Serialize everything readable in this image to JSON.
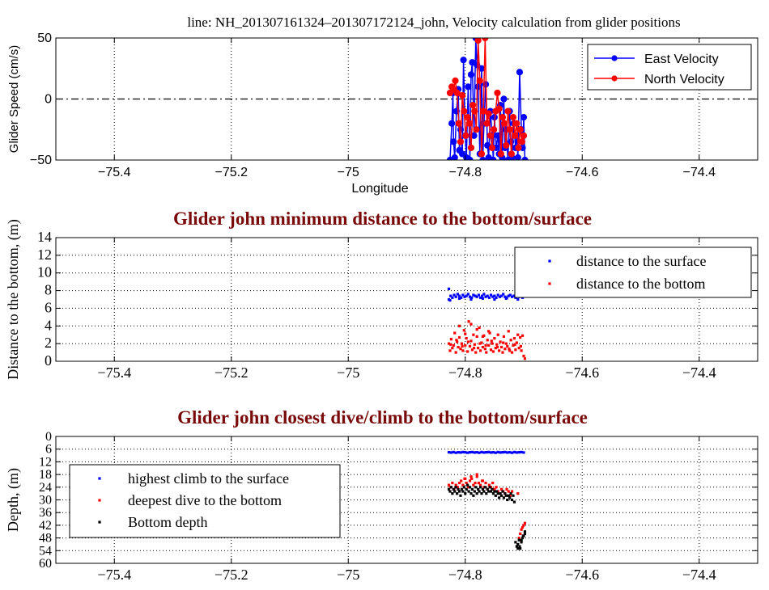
{
  "figure_title": "line: NH_201307161324–201307172124_john, Velocity calculation from glider positions",
  "colors": {
    "blue": "#0000ff",
    "red": "#ff0000",
    "black": "#000000",
    "title": "#7a0a0a"
  },
  "chart_data": [
    {
      "type": "line",
      "title": "",
      "xlabel": "Longitude",
      "ylabel": "Glider Speed (cm/s)",
      "xlim": [
        -75.5,
        -74.3
      ],
      "ylim": [
        -50,
        50
      ],
      "xticks": [
        -75.4,
        -75.2,
        -75.0,
        -74.8,
        -74.6,
        -74.4
      ],
      "xtick_labels": [
        "−75.4",
        "−75.2",
        "−75",
        "−74.8",
        "−74.6",
        "−74.4"
      ],
      "yticks": [
        -50,
        0,
        50
      ],
      "ytick_labels": [
        "−50",
        "0",
        "50"
      ],
      "zero_line": true,
      "grid": "vertical dotted",
      "legend_position": "top-right",
      "series": [
        {
          "name": "East Velocity",
          "color": "#0000ff",
          "x": [
            -74.826,
            -74.823,
            -74.821,
            -74.82,
            -74.818,
            -74.815,
            -74.812,
            -74.81,
            -74.808,
            -74.805,
            -74.803,
            -74.8,
            -74.798,
            -74.795,
            -74.792,
            -74.79,
            -74.788,
            -74.785,
            -74.782,
            -74.78,
            -74.778,
            -74.775,
            -74.772,
            -74.77,
            -74.768,
            -74.765,
            -74.762,
            -74.76,
            -74.757,
            -74.754,
            -74.752,
            -74.75,
            -74.747,
            -74.744,
            -74.742,
            -74.74,
            -74.737,
            -74.734,
            -74.732,
            -74.73,
            -74.727,
            -74.724,
            -74.722,
            -74.72,
            -74.717,
            -74.714,
            -74.712,
            -74.71,
            -74.707,
            -74.704,
            -74.702,
            -74.7,
            -74.698
          ],
          "y": [
            -50,
            -20,
            5,
            -35,
            -48,
            -10,
            8,
            -42,
            -25,
            -45,
            32,
            -30,
            -48,
            10,
            -50,
            20,
            30,
            -30,
            50,
            28,
            10,
            -45,
            25,
            -50,
            -20,
            12,
            -38,
            -48,
            -10,
            -30,
            -50,
            -15,
            -40,
            -30,
            -45,
            -5,
            -48,
            0,
            -40,
            -25,
            -50,
            -10,
            -35,
            -48,
            -20,
            -40,
            -30,
            -48,
            22,
            -25,
            -40,
            -15,
            -50
          ]
        },
        {
          "name": "North Velocity",
          "color": "#ff0000",
          "x": [
            -74.826,
            -74.823,
            -74.82,
            -74.817,
            -74.814,
            -74.811,
            -74.808,
            -74.805,
            -74.802,
            -74.799,
            -74.796,
            -74.793,
            -74.79,
            -74.787,
            -74.784,
            -74.781,
            -74.778,
            -74.775,
            -74.772,
            -74.769,
            -74.766,
            -74.763,
            -74.76,
            -74.757,
            -74.754,
            -74.751,
            -74.748,
            -74.745,
            -74.742,
            -74.739,
            -74.736,
            -74.733,
            -74.73,
            -74.727,
            -74.724,
            -74.721,
            -74.718,
            -74.715,
            -74.712,
            -74.709,
            -74.706,
            -74.703,
            -74.7
          ],
          "y": [
            5,
            10,
            8,
            15,
            5,
            -20,
            -35,
            3,
            -10,
            -30,
            -15,
            -20,
            -40,
            -5,
            -10,
            -25,
            48,
            15,
            -45,
            -10,
            50,
            -20,
            -12,
            -30,
            -40,
            -25,
            -10,
            5,
            -8,
            -45,
            -15,
            -20,
            -38,
            -10,
            -25,
            -45,
            -15,
            -30,
            -20,
            -40,
            -25,
            -35,
            -30
          ]
        }
      ]
    },
    {
      "type": "scatter",
      "title": "Glider john minimum distance to the bottom/surface",
      "xlabel": "",
      "ylabel": "Distance to the bottom, (m)",
      "xlim": [
        -75.5,
        -74.3
      ],
      "ylim": [
        0,
        14
      ],
      "xticks": [
        -75.4,
        -75.2,
        -75.0,
        -74.8,
        -74.6,
        -74.4
      ],
      "xtick_labels": [
        "−75.4",
        "−75.2",
        "−75",
        "−74.8",
        "−74.6",
        "−74.4"
      ],
      "yticks": [
        0,
        2,
        4,
        6,
        8,
        10,
        12,
        14
      ],
      "ytick_labels": [
        "0",
        "2",
        "4",
        "6",
        "8",
        "10",
        "12",
        "14"
      ],
      "grid": "dotted",
      "legend_position": "top-right",
      "series": [
        {
          "name": "distance to the surface",
          "color": "#0000ff",
          "x": [
            -74.828,
            -74.825,
            -74.822,
            -74.819,
            -74.816,
            -74.813,
            -74.81,
            -74.807,
            -74.804,
            -74.801,
            -74.798,
            -74.795,
            -74.792,
            -74.789,
            -74.786,
            -74.783,
            -74.78,
            -74.777,
            -74.774,
            -74.771,
            -74.768,
            -74.765,
            -74.762,
            -74.759,
            -74.756,
            -74.753,
            -74.75,
            -74.747,
            -74.744,
            -74.741,
            -74.738,
            -74.735,
            -74.732,
            -74.729,
            -74.726,
            -74.723,
            -74.72,
            -74.717,
            -74.714,
            -74.711,
            -74.708,
            -74.705,
            -74.702,
            -74.699,
            -74.828,
            -74.826,
            -74.81,
            -74.79,
            -74.77,
            -74.75,
            -74.73,
            -74.71
          ],
          "y": [
            8.2,
            7.4,
            7.2,
            7.5,
            7.3,
            7.6,
            7.4,
            7.2,
            7.5,
            7.3,
            7.4,
            7.6,
            7.3,
            7.2,
            7.5,
            7.4,
            7.3,
            7.5,
            7.2,
            7.4,
            7.6,
            7.3,
            7.4,
            7.2,
            7.5,
            7.3,
            7.4,
            7.2,
            7.5,
            7.3,
            7.4,
            7.6,
            7.3,
            7.2,
            7.4,
            7.5,
            7.3,
            7.4,
            7.2,
            7.5,
            7.3,
            7.4,
            7.2,
            7.5,
            7.0,
            6.9,
            7.1,
            7.0,
            7.1,
            7.0,
            7.1,
            7.0
          ]
        },
        {
          "name": "distance to the bottom",
          "color": "#ff0000",
          "x": [
            -74.828,
            -74.826,
            -74.824,
            -74.822,
            -74.82,
            -74.818,
            -74.816,
            -74.814,
            -74.812,
            -74.81,
            -74.808,
            -74.806,
            -74.804,
            -74.802,
            -74.8,
            -74.798,
            -74.796,
            -74.794,
            -74.792,
            -74.79,
            -74.788,
            -74.786,
            -74.784,
            -74.782,
            -74.78,
            -74.778,
            -74.776,
            -74.774,
            -74.772,
            -74.77,
            -74.768,
            -74.766,
            -74.764,
            -74.762,
            -74.76,
            -74.758,
            -74.756,
            -74.754,
            -74.752,
            -74.75,
            -74.748,
            -74.746,
            -74.744,
            -74.742,
            -74.74,
            -74.738,
            -74.736,
            -74.734,
            -74.732,
            -74.73,
            -74.728,
            -74.726,
            -74.724,
            -74.722,
            -74.72,
            -74.718,
            -74.716,
            -74.714,
            -74.712,
            -74.71,
            -74.708,
            -74.706,
            -74.704,
            -74.702,
            -74.7,
            -74.698,
            -74.825,
            -74.815,
            -74.805,
            -74.795,
            -74.785,
            -74.775,
            -74.765,
            -74.755,
            -74.745,
            -74.735,
            -74.725,
            -74.715,
            -74.705,
            -74.79,
            -74.78,
            -74.77,
            -74.76,
            -74.81,
            -74.8
          ],
          "y": [
            2.0,
            1.2,
            2.5,
            1.5,
            1.8,
            3.2,
            1.0,
            2.2,
            1.6,
            4.0,
            1.4,
            2.0,
            1.2,
            3.5,
            1.8,
            2.6,
            1.1,
            4.5,
            1.7,
            2.3,
            1.3,
            3.0,
            1.9,
            1.0,
            2.8,
            1.5,
            3.8,
            1.2,
            2.1,
            1.6,
            2.9,
            1.4,
            1.0,
            2.4,
            1.8,
            3.2,
            1.3,
            2.0,
            1.1,
            2.6,
            1.5,
            1.9,
            3.0,
            1.2,
            2.2,
            1.6,
            1.0,
            2.8,
            1.4,
            2.0,
            1.7,
            3.4,
            1.2,
            2.4,
            1.0,
            1.8,
            2.6,
            1.3,
            2.1,
            3.0,
            1.5,
            2.7,
            1.2,
            2.9,
            0.6,
            0.3,
            1.9,
            2.4,
            1.7,
            2.2,
            1.5,
            2.0,
            1.8,
            2.3,
            1.6,
            2.1,
            1.4,
            1.9,
            1.7,
            4.2,
            3.6,
            2.8,
            3.4,
            2.7,
            3.1
          ]
        }
      ]
    },
    {
      "type": "scatter",
      "title": "Glider john closest dive/climb to the bottom/surface",
      "xlabel": "",
      "ylabel": "Depth, (m)",
      "xlim": [
        -75.5,
        -74.3
      ],
      "ylim": [
        60,
        0
      ],
      "y_reversed": true,
      "xticks": [
        -75.4,
        -75.2,
        -75.0,
        -74.8,
        -74.6,
        -74.4
      ],
      "xtick_labels": [
        "−75.4",
        "−75.2",
        "−75",
        "−74.8",
        "−74.6",
        "−74.4"
      ],
      "yticks": [
        0,
        6,
        12,
        18,
        24,
        30,
        36,
        42,
        48,
        54,
        60
      ],
      "ytick_labels": [
        "0",
        "6",
        "12",
        "18",
        "24",
        "30",
        "36",
        "42",
        "48",
        "54",
        "60"
      ],
      "grid": "dotted",
      "legend_position": "bottom-left",
      "series": [
        {
          "name": "highest climb to the surface",
          "color": "#0000ff",
          "x": [
            -74.828,
            -74.824,
            -74.82,
            -74.816,
            -74.812,
            -74.808,
            -74.804,
            -74.8,
            -74.796,
            -74.792,
            -74.788,
            -74.784,
            -74.78,
            -74.776,
            -74.772,
            -74.768,
            -74.764,
            -74.76,
            -74.756,
            -74.752,
            -74.748,
            -74.744,
            -74.74,
            -74.736,
            -74.732,
            -74.728,
            -74.724,
            -74.72,
            -74.716,
            -74.712,
            -74.708,
            -74.704,
            -74.7
          ],
          "y": [
            7.5,
            7.6,
            7.4,
            7.7,
            7.5,
            7.6,
            7.4,
            7.5,
            7.7,
            7.5,
            7.4,
            7.6,
            7.5,
            7.7,
            7.4,
            7.6,
            7.5,
            7.4,
            7.6,
            7.5,
            7.7,
            7.4,
            7.6,
            7.5,
            7.4,
            7.6,
            7.5,
            7.7,
            7.4,
            7.6,
            7.5,
            7.4,
            7.6
          ]
        },
        {
          "name": "deepest dive to the bottom",
          "color": "#ff0000",
          "x": [
            -74.828,
            -74.825,
            -74.822,
            -74.819,
            -74.816,
            -74.813,
            -74.81,
            -74.807,
            -74.804,
            -74.801,
            -74.798,
            -74.795,
            -74.792,
            -74.789,
            -74.786,
            -74.783,
            -74.78,
            -74.777,
            -74.774,
            -74.771,
            -74.768,
            -74.765,
            -74.762,
            -74.759,
            -74.756,
            -74.753,
            -74.75,
            -74.747,
            -74.744,
            -74.741,
            -74.738,
            -74.735,
            -74.732,
            -74.729,
            -74.726,
            -74.723,
            -74.72,
            -74.71,
            -74.708,
            -74.706,
            -74.704,
            -74.702,
            -74.7,
            -74.698,
            -74.8,
            -74.79,
            -74.78,
            -74.77
          ],
          "y": [
            23,
            24,
            22,
            25,
            23,
            24,
            22,
            21,
            23,
            20,
            22,
            24,
            21,
            20,
            23,
            22,
            19,
            22,
            23,
            21,
            24,
            22,
            25,
            23,
            24,
            22,
            25,
            24,
            26,
            27,
            25,
            26,
            27,
            25,
            26,
            28,
            26,
            27,
            48,
            46,
            44,
            43,
            42,
            41,
            20,
            19,
            18,
            21
          ]
        },
        {
          "name": "Bottom depth",
          "color": "#000000",
          "x": [
            -74.828,
            -74.826,
            -74.824,
            -74.822,
            -74.82,
            -74.818,
            -74.816,
            -74.814,
            -74.812,
            -74.81,
            -74.808,
            -74.806,
            -74.804,
            -74.802,
            -74.8,
            -74.798,
            -74.796,
            -74.794,
            -74.792,
            -74.79,
            -74.788,
            -74.786,
            -74.784,
            -74.782,
            -74.78,
            -74.778,
            -74.776,
            -74.774,
            -74.772,
            -74.77,
            -74.768,
            -74.766,
            -74.764,
            -74.762,
            -74.76,
            -74.758,
            -74.756,
            -74.754,
            -74.752,
            -74.75,
            -74.748,
            -74.746,
            -74.744,
            -74.742,
            -74.74,
            -74.738,
            -74.736,
            -74.734,
            -74.732,
            -74.73,
            -74.728,
            -74.726,
            -74.724,
            -74.722,
            -74.72,
            -74.718,
            -74.716,
            -74.714,
            -74.712,
            -74.71,
            -74.708,
            -74.706,
            -74.704,
            -74.702,
            -74.7,
            -74.698,
            -74.71,
            -74.707,
            -74.704,
            -74.701,
            -74.698
          ],
          "y": [
            25,
            26,
            24,
            27,
            25,
            26,
            24,
            27,
            25,
            26,
            28,
            25,
            26,
            24,
            27,
            25,
            23,
            26,
            24,
            27,
            25,
            28,
            26,
            24,
            27,
            25,
            26,
            24,
            27,
            25,
            26,
            24,
            27,
            25,
            26,
            24,
            26,
            25,
            27,
            26,
            28,
            26,
            27,
            29,
            27,
            28,
            26,
            29,
            27,
            28,
            30,
            28,
            29,
            27,
            30,
            28,
            31,
            50,
            52,
            51,
            49,
            53,
            50,
            48,
            47,
            46,
            53,
            52,
            49,
            47,
            45
          ]
        }
      ]
    }
  ]
}
